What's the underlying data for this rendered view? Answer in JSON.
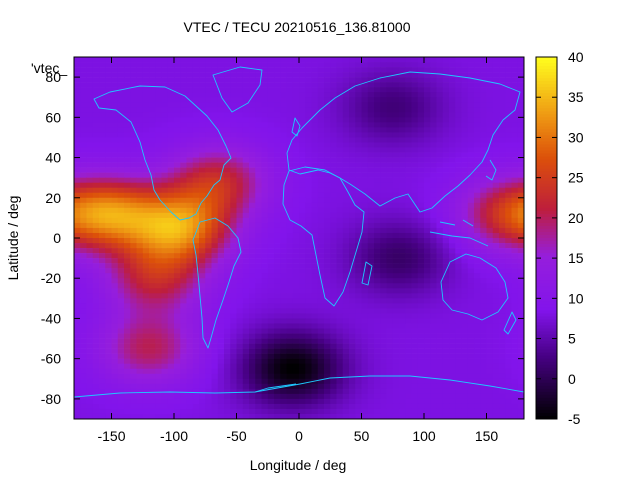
{
  "chart_data": {
    "type": "heatmap",
    "title": "VTEC / TECU 20210516_136.81000",
    "series_label": "'vtec_",
    "xlabel": "Longitude / deg",
    "ylabel": "Latitude / deg",
    "xlim": [
      -180,
      180
    ],
    "ylim": [
      -90,
      90
    ],
    "xticks": [
      -150,
      -100,
      -50,
      0,
      50,
      100,
      150
    ],
    "yticks": [
      -80,
      -60,
      -40,
      -20,
      0,
      20,
      40,
      60,
      80
    ],
    "colorbar": {
      "min": -5,
      "max": 40,
      "ticks": [
        -5,
        0,
        5,
        10,
        15,
        20,
        25,
        30,
        35,
        40
      ]
    },
    "grid_resolution_deg": [
      5,
      2.5
    ],
    "background_tec": 8,
    "features": [
      {
        "name": "pacific-equatorial-peak",
        "lon": -150,
        "lat": 12,
        "value": 28
      },
      {
        "name": "south-america-peak",
        "lon": -95,
        "lat": 5,
        "value": 30
      },
      {
        "name": "atlantic-north-band",
        "lon": -65,
        "lat": 28,
        "value": 22
      },
      {
        "name": "south-pacific-band",
        "lon": -115,
        "lat": -20,
        "value": 21
      },
      {
        "name": "southern-ocean-patch",
        "lon": -120,
        "lat": -55,
        "value": 20
      },
      {
        "name": "west-pacific-band",
        "lon": 165,
        "lat": 12,
        "value": 21
      },
      {
        "name": "antarctic-depletion",
        "lon": -5,
        "lat": -65,
        "value": -5
      },
      {
        "name": "indian-ocean-depletion",
        "lon": 80,
        "lat": -10,
        "value": 1
      },
      {
        "name": "siberia-depletion",
        "lon": 75,
        "lat": 65,
        "value": 2
      }
    ]
  }
}
